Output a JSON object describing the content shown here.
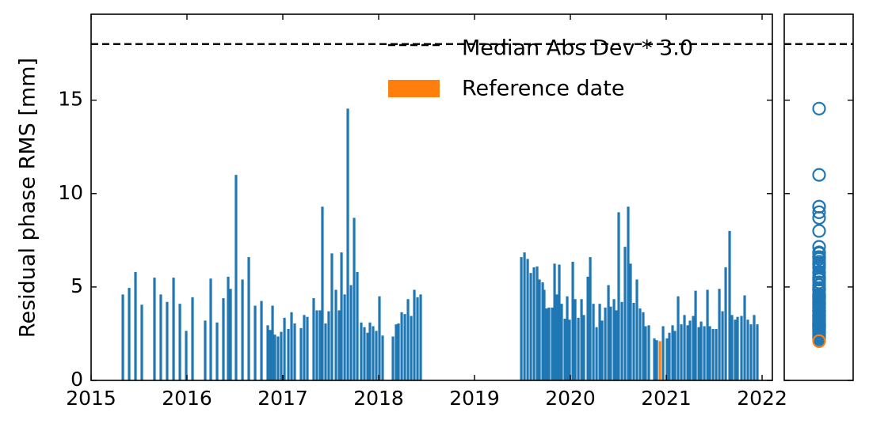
{
  "chart_data": {
    "type": "bar",
    "y_label": "Residual phase RMS [mm]",
    "xlim": [
      2015,
      2022.107
    ],
    "xticks": [
      2015,
      2016,
      2017,
      2018,
      2019,
      2020,
      2021,
      2022
    ],
    "ylim": [
      0,
      19.6
    ],
    "yticks": [
      0,
      5,
      10,
      15
    ],
    "threshold": {
      "name": "Median Abs Dev * 3.0",
      "value": 18,
      "color": "#000000"
    },
    "series": [
      {
        "color": "#1f77b4",
        "x": [
          2015.331,
          2015.397,
          2015.463,
          2015.529,
          2015.661,
          2015.727,
          2015.793,
          2015.86,
          2015.926,
          2015.992,
          2016.058,
          2016.19,
          2016.248,
          2016.314,
          2016.38,
          2016.43,
          2016.455,
          2016.512,
          2016.579,
          2016.645,
          2016.711,
          2016.777,
          2016.843,
          2016.868,
          2016.893,
          2016.917,
          2016.95,
          2016.983,
          2017.017,
          2017.058,
          2017.091,
          2017.124,
          2017.19,
          2017.223,
          2017.256,
          2017.322,
          2017.355,
          2017.388,
          2017.413,
          2017.446,
          2017.479,
          2017.512,
          2017.554,
          2017.587,
          2017.612,
          2017.645,
          2017.678,
          2017.711,
          2017.744,
          2017.777,
          2017.818,
          2017.851,
          2017.884,
          2017.909,
          2017.942,
          2017.975,
          2018.008,
          2018.041,
          2018.149,
          2018.182,
          2018.207,
          2018.24,
          2018.273,
          2018.306,
          2018.339,
          2018.372,
          2018.405,
          2018.438,
          2019.488,
          2019.521,
          2019.554,
          2019.587,
          2019.62,
          2019.653,
          2019.678,
          2019.711,
          2019.727,
          2019.752,
          2019.777,
          2019.81,
          2019.835,
          2019.86,
          2019.884,
          2019.909,
          2019.942,
          2019.967,
          2019.992,
          2020.025,
          2020.05,
          2020.083,
          2020.116,
          2020.14,
          2020.182,
          2020.207,
          2020.24,
          2020.273,
          2020.306,
          2020.331,
          2020.364,
          2020.397,
          2020.421,
          2020.455,
          2020.479,
          2020.504,
          2020.537,
          2020.57,
          2020.603,
          2020.628,
          2020.661,
          2020.694,
          2020.727,
          2020.76,
          2020.785,
          2020.818,
          2020.876,
          2020.901,
          2020.967,
          2021.008,
          2021.033,
          2021.066,
          2021.091,
          2021.124,
          2021.157,
          2021.19,
          2021.223,
          2021.248,
          2021.281,
          2021.306,
          2021.339,
          2021.364,
          2021.397,
          2021.43,
          2021.455,
          2021.488,
          2021.521,
          2021.554,
          2021.587,
          2021.62,
          2021.661,
          2021.686,
          2021.719,
          2021.744,
          2021.785,
          2021.818,
          2021.851,
          2021.884,
          2021.917,
          2021.95
        ],
        "values": [
          4.6,
          4.95,
          5.8,
          4.05,
          5.5,
          4.6,
          4.2,
          5.5,
          4.1,
          2.65,
          4.45,
          3.2,
          5.45,
          3.1,
          4.4,
          5.55,
          4.9,
          11.0,
          5.4,
          6.6,
          4.0,
          4.25,
          2.95,
          2.7,
          4.0,
          2.45,
          2.35,
          2.6,
          3.35,
          2.75,
          3.65,
          3.05,
          2.8,
          3.5,
          3.4,
          4.4,
          3.75,
          3.75,
          9.3,
          3.05,
          3.7,
          6.8,
          4.85,
          3.75,
          6.85,
          4.6,
          14.55,
          5.1,
          8.7,
          5.8,
          3.1,
          2.85,
          2.55,
          3.1,
          2.9,
          2.65,
          4.5,
          2.4,
          2.35,
          3.0,
          3.05,
          3.65,
          3.55,
          4.35,
          3.45,
          4.85,
          4.45,
          4.6,
          6.6,
          6.85,
          6.5,
          5.75,
          6.05,
          6.1,
          5.4,
          5.25,
          4.85,
          3.85,
          3.9,
          3.9,
          6.25,
          4.6,
          6.2,
          4.1,
          3.3,
          4.5,
          3.25,
          6.35,
          4.35,
          3.35,
          4.35,
          3.5,
          5.55,
          6.6,
          4.1,
          2.85,
          4.1,
          3.2,
          3.9,
          5.1,
          3.95,
          4.35,
          3.75,
          9.0,
          4.2,
          7.15,
          9.3,
          6.25,
          4.15,
          5.4,
          3.85,
          3.65,
          2.9,
          2.95,
          2.25,
          2.15,
          2.9,
          2.25,
          2.55,
          2.95,
          2.65,
          4.5,
          3.0,
          3.5,
          2.95,
          3.2,
          3.45,
          4.8,
          2.85,
          3.15,
          2.9,
          4.85,
          2.9,
          2.75,
          2.75,
          4.9,
          3.7,
          6.05,
          8.0,
          3.5,
          3.25,
          3.4,
          3.45,
          4.55,
          3.25,
          3.0,
          3.5,
          3.0
        ]
      },
      {
        "name": "Reference date",
        "color": "#ff7f0e",
        "x": [
          2020.934
        ],
        "values": [
          2.1
        ]
      }
    ]
  }
}
